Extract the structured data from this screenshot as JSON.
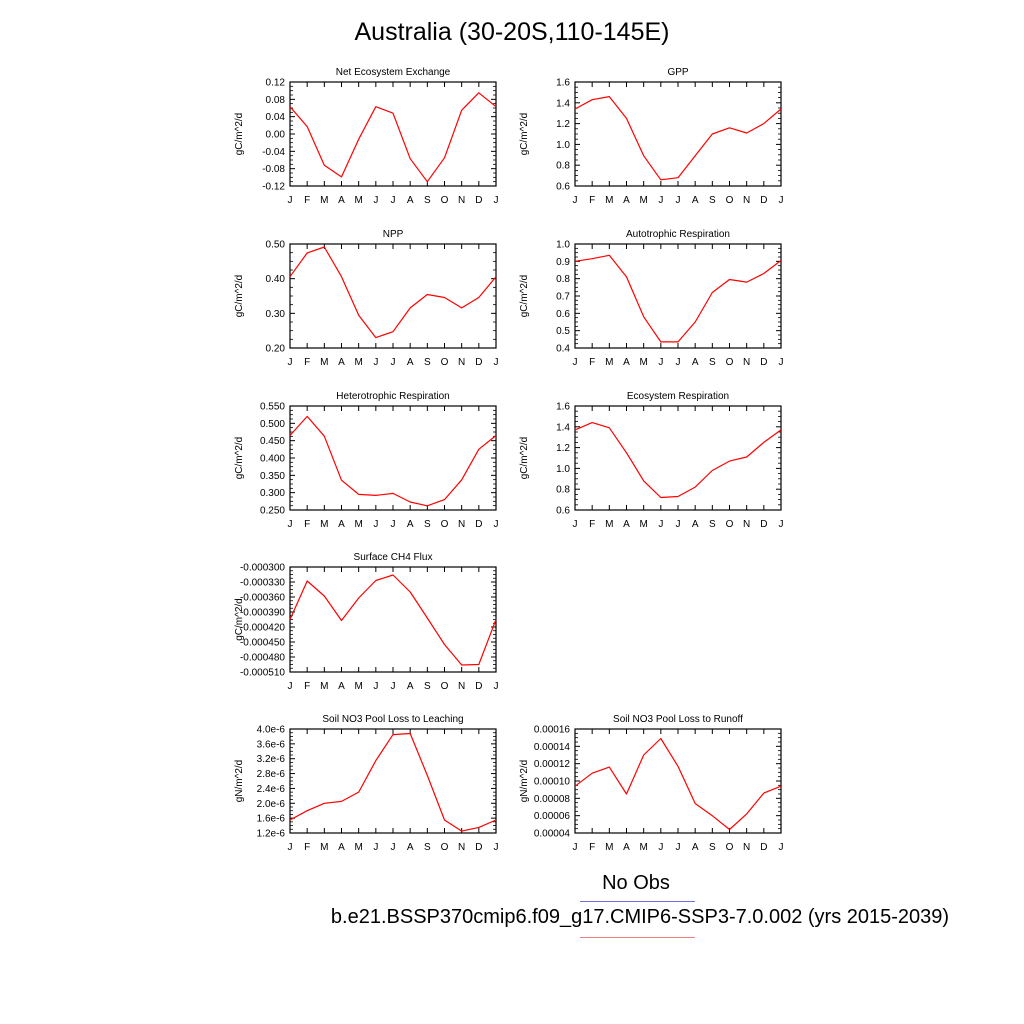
{
  "page": {
    "title": "Australia (30-20S,110-145E)",
    "legend": {
      "obs_label": "No Obs",
      "obs_color": "#6f6fe6",
      "case_label": "b.e21.BSSP370cmip6.f09_g17.CMIP6-SSP3-7.0.002 (yrs 2015-2039)",
      "case_color": "#f08080"
    }
  },
  "chart_data": [
    {
      "type": "line",
      "title": "Net Ecosystem Exchange",
      "ylabel": "gC/m^2/d",
      "categories": [
        "J",
        "F",
        "M",
        "A",
        "M",
        "J",
        "J",
        "A",
        "S",
        "O",
        "N",
        "D",
        "J"
      ],
      "yticks": [
        "0.12",
        "0.08",
        "0.04",
        "0.00",
        "-0.04",
        "-0.08",
        "-0.12"
      ],
      "ylim": [
        -0.12,
        0.12
      ],
      "series": [
        {
          "color": "#ff0000",
          "values": [
            0.063,
            0.017,
            -0.072,
            -0.099,
            -0.012,
            0.063,
            0.048,
            -0.057,
            -0.11,
            -0.055,
            0.055,
            0.095,
            0.063
          ]
        }
      ]
    },
    {
      "type": "line",
      "title": "GPP",
      "ylabel": "gC/m^2/d",
      "categories": [
        "J",
        "F",
        "M",
        "A",
        "M",
        "J",
        "J",
        "A",
        "S",
        "O",
        "N",
        "D",
        "J"
      ],
      "yticks": [
        "1.6",
        "1.4",
        "1.2",
        "1.0",
        "0.8",
        "0.6"
      ],
      "ylim": [
        0.6,
        1.6
      ],
      "series": [
        {
          "color": "#ff0000",
          "values": [
            1.34,
            1.43,
            1.46,
            1.25,
            0.89,
            0.66,
            0.68,
            0.89,
            1.1,
            1.16,
            1.11,
            1.2,
            1.34
          ]
        }
      ]
    },
    {
      "type": "line",
      "title": "NPP",
      "ylabel": "gC/m^2/d",
      "categories": [
        "J",
        "F",
        "M",
        "A",
        "M",
        "J",
        "J",
        "A",
        "S",
        "O",
        "N",
        "D",
        "J"
      ],
      "yticks": [
        "0.50",
        "0.40",
        "0.30",
        "0.20"
      ],
      "ylim": [
        0.2,
        0.55
      ],
      "series": [
        {
          "color": "#ff0000",
          "values": [
            0.44,
            0.52,
            0.54,
            0.44,
            0.31,
            0.235,
            0.255,
            0.335,
            0.38,
            0.37,
            0.335,
            0.37,
            0.44
          ]
        }
      ]
    },
    {
      "type": "line",
      "title": "Autotrophic Respiration",
      "ylabel": "gC/m^2/d",
      "categories": [
        "J",
        "F",
        "M",
        "A",
        "M",
        "J",
        "J",
        "A",
        "S",
        "O",
        "N",
        "D",
        "J"
      ],
      "yticks": [
        "1.0",
        "0.9",
        "0.8",
        "0.7",
        "0.6",
        "0.5",
        "0.4"
      ],
      "ylim": [
        0.4,
        1.0
      ],
      "series": [
        {
          "color": "#ff0000",
          "values": [
            0.9,
            0.915,
            0.935,
            0.81,
            0.58,
            0.435,
            0.435,
            0.55,
            0.72,
            0.795,
            0.78,
            0.83,
            0.905
          ]
        }
      ]
    },
    {
      "type": "line",
      "title": "Heterotrophic Respiration",
      "ylabel": "gC/m^2/d",
      "categories": [
        "J",
        "F",
        "M",
        "A",
        "M",
        "J",
        "J",
        "A",
        "S",
        "O",
        "N",
        "D",
        "J"
      ],
      "yticks": [
        "0.550",
        "0.500",
        "0.450",
        "0.400",
        "0.350",
        "0.300",
        "0.250"
      ],
      "ylim": [
        0.25,
        0.55
      ],
      "series": [
        {
          "color": "#ff0000",
          "values": [
            0.465,
            0.52,
            0.463,
            0.336,
            0.295,
            0.292,
            0.298,
            0.273,
            0.262,
            0.28,
            0.337,
            0.425,
            0.465
          ]
        }
      ]
    },
    {
      "type": "line",
      "title": "Ecosystem Respiration",
      "ylabel": "gC/m^2/d",
      "categories": [
        "J",
        "F",
        "M",
        "A",
        "M",
        "J",
        "J",
        "A",
        "S",
        "O",
        "N",
        "D",
        "J"
      ],
      "yticks": [
        "1.6",
        "1.4",
        "1.2",
        "1.0",
        "0.8",
        "0.6"
      ],
      "ylim": [
        0.6,
        1.6
      ],
      "series": [
        {
          "color": "#ff0000",
          "values": [
            1.37,
            1.44,
            1.39,
            1.15,
            0.88,
            0.72,
            0.73,
            0.82,
            0.98,
            1.07,
            1.11,
            1.25,
            1.37
          ]
        }
      ]
    },
    {
      "type": "line",
      "title": "Surface CH4 Flux",
      "ylabel": "gC/m^2/d",
      "categories": [
        "J",
        "F",
        "M",
        "A",
        "M",
        "J",
        "J",
        "A",
        "S",
        "O",
        "N",
        "D",
        "J"
      ],
      "yticks": [
        "-0.000300",
        "-0.000330",
        "-0.000360",
        "-0.000390",
        "-0.000420",
        "-0.000450",
        "-0.000480",
        "-0.000510"
      ],
      "ylim": [
        -0.00051,
        -0.0003
      ],
      "series": [
        {
          "color": "#ff0000",
          "values": [
            -0.000405,
            -0.000328,
            -0.000358,
            -0.000407,
            -0.000362,
            -0.000327,
            -0.000316,
            -0.00035,
            -0.000402,
            -0.000455,
            -0.000496,
            -0.000495,
            -0.000405
          ]
        }
      ]
    },
    {
      "type": "line",
      "title": "Soil NO3 Pool Loss to Leaching",
      "ylabel": "gN/m^2/d",
      "categories": [
        "J",
        "F",
        "M",
        "A",
        "M",
        "J",
        "J",
        "A",
        "S",
        "O",
        "N",
        "D",
        "J"
      ],
      "yticks": [
        "4.0e-6",
        "3.6e-6",
        "3.2e-6",
        "2.8e-6",
        "2.4e-6",
        "2.0e-6",
        "1.6e-6",
        "1.2e-6"
      ],
      "ylim": [
        1.2e-06,
        4e-06
      ],
      "series": [
        {
          "color": "#ff0000",
          "values": [
            1.55e-06,
            1.8e-06,
            2e-06,
            2.05e-06,
            2.3e-06,
            3.15e-06,
            3.85e-06,
            3.88e-06,
            2.75e-06,
            1.55e-06,
            1.25e-06,
            1.35e-06,
            1.55e-06
          ]
        }
      ]
    },
    {
      "type": "line",
      "title": "Soil NO3 Pool Loss to Runoff",
      "ylabel": "gN/m^2/d",
      "categories": [
        "J",
        "F",
        "M",
        "A",
        "M",
        "J",
        "J",
        "A",
        "S",
        "O",
        "N",
        "D",
        "J"
      ],
      "yticks": [
        "0.00016",
        "0.00014",
        "0.00012",
        "0.00010",
        "0.00008",
        "0.00006",
        "0.00004"
      ],
      "ylim": [
        4e-05,
        0.00016
      ],
      "series": [
        {
          "color": "#ff0000",
          "values": [
            9.4e-05,
            0.000109,
            0.000116,
            8.5e-05,
            0.00013,
            0.000149,
            0.000117,
            7.4e-05,
            6e-05,
            4.4e-05,
            6.2e-05,
            8.6e-05,
            9.4e-05
          ]
        }
      ]
    }
  ]
}
